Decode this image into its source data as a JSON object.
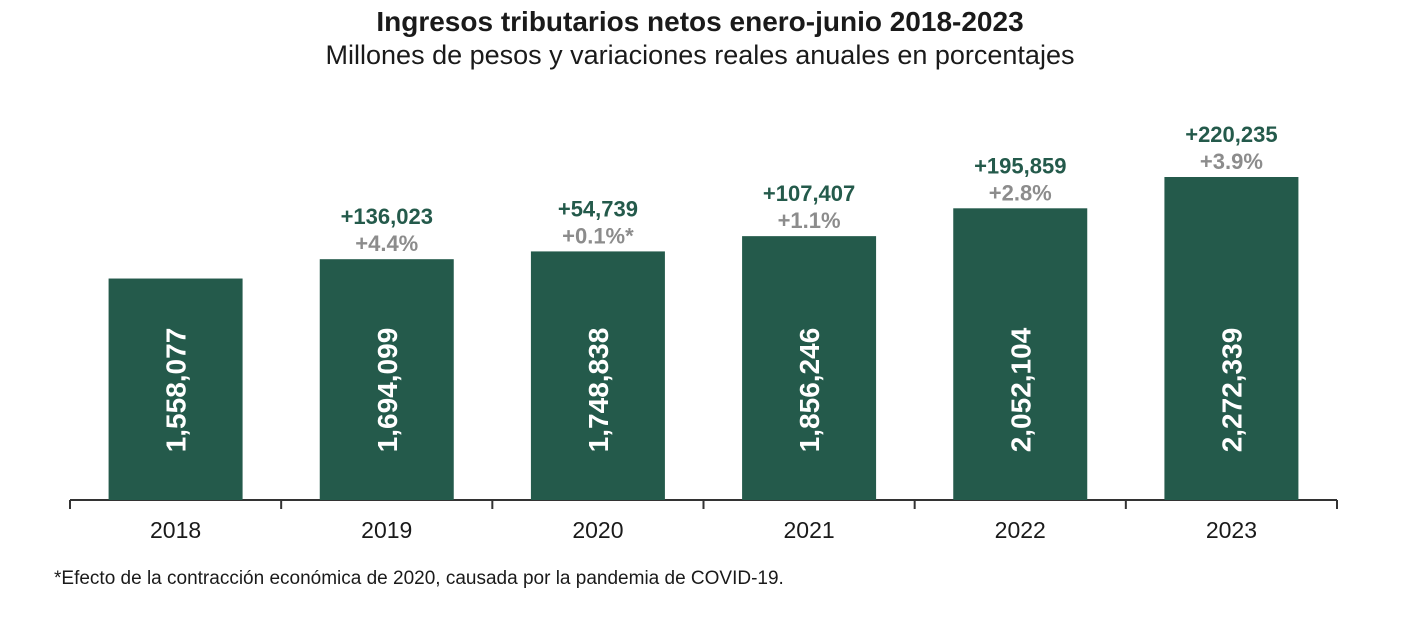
{
  "title": "Ingresos tributarios netos enero-junio 2018-2023",
  "subtitle": "Millones de pesos y variaciones reales anuales en porcentajes",
  "footnote": "*Efecto de la contracción económica de 2020, causada por la pandemia de COVID-19.",
  "colors": {
    "bar": "#245a4b",
    "increase": "#245a4b",
    "percent": "#8c8c8c",
    "axis": "#333333"
  },
  "chart_data": {
    "type": "bar",
    "categories": [
      "2018",
      "2019",
      "2020",
      "2021",
      "2022",
      "2023"
    ],
    "values": [
      1558077,
      1694099,
      1748838,
      1856246,
      2052104,
      2272339
    ],
    "value_labels": [
      "1,558,077",
      "1,694,099",
      "1,748,838",
      "1,856,246",
      "2,052,104",
      "2,272,339"
    ],
    "increase_labels": [
      "",
      "+136,023",
      "+54,739",
      "+107,407",
      "+195,859",
      "+220,235"
    ],
    "percent_labels": [
      "",
      "+4.4%",
      "+0.1%*",
      "+1.1%",
      "+2.8%",
      "+3.9%"
    ],
    "title": "Ingresos tributarios netos enero-junio 2018-2023",
    "xlabel": "",
    "ylabel": "",
    "ylim": [
      0,
      2272339
    ],
    "grid": false,
    "legend": "none"
  }
}
